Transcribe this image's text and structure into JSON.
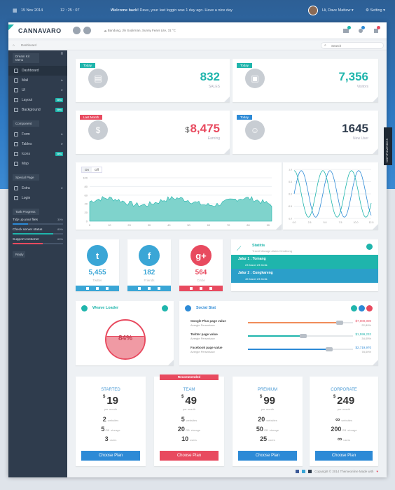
{
  "topbar": {
    "date": "15 Nov 2014",
    "time": "12 : 25 : 07",
    "welcome_strong": "Welcome back!",
    "welcome_rest": " Dave, your last loggin was 1 day ago. Have a nice day",
    "user": "Hi, Dave Mattew",
    "setting": "Setting"
  },
  "header": {
    "brand": "CANNAVARO",
    "location": "Bandung, Jln Sudirman, Sunny Fears Lite, 31 °C"
  },
  "breadcrumb": "Dashboard",
  "search_placeholder": "Search",
  "sidebar": {
    "sec1": "Dream Kit Menu",
    "items1": [
      {
        "label": "Dashboard",
        "arrow": "",
        "tag": ""
      },
      {
        "label": "Mail",
        "arrow": "▸",
        "tag": ""
      },
      {
        "label": "UI",
        "arrow": "▸",
        "tag": ""
      },
      {
        "label": "Layout",
        "arrow": "",
        "tag": "New"
      },
      {
        "label": "Background",
        "arrow": "",
        "tag": "New"
      }
    ],
    "sec2": "Component",
    "items2": [
      {
        "label": "Form",
        "arrow": "▸",
        "tag": ""
      },
      {
        "label": "Tables",
        "arrow": "▸",
        "tag": ""
      },
      {
        "label": "Icons",
        "arrow": "",
        "tag": "New"
      },
      {
        "label": "Map",
        "arrow": "",
        "tag": ""
      }
    ],
    "sec3": "Special Page",
    "items3": [
      {
        "label": "Extra",
        "arrow": "▸",
        "tag": ""
      },
      {
        "label": "Login",
        "arrow": "",
        "tag": ""
      }
    ],
    "sec4": "Task Progress",
    "tasks": [
      {
        "label": "Tidy up your files",
        "pct": "30%",
        "color": "#2d8ad6"
      },
      {
        "label": "Check server status",
        "pct": "80%",
        "color": "#1fb5ac"
      },
      {
        "label": "Support costumer",
        "pct": "60%",
        "color": "#e84a5f"
      }
    ],
    "reply": "Reply"
  },
  "stats": [
    {
      "ribbon": "Today",
      "ribbon_color": "#1fb5ac",
      "value": "832",
      "prefix": "",
      "label": "SALES",
      "color": "#1fb5ac",
      "icon": "store-icon"
    },
    {
      "ribbon": "Today",
      "ribbon_color": "#1fb5ac",
      "value": "7,356",
      "prefix": "",
      "label": "Visitors",
      "color": "#1fb5ac",
      "icon": "bag-icon"
    },
    {
      "ribbon": "Last Month",
      "ribbon_color": "#e84a5f",
      "value": "8,475",
      "prefix": "$",
      "label": "Earning",
      "color": "#e84a5f",
      "icon": "money-icon"
    },
    {
      "ribbon": "Today",
      "ribbon_color": "#2d8ad6",
      "value": "1645",
      "prefix": "",
      "label": "New User",
      "color": "#2f3c4d",
      "icon": "user-icon"
    }
  ],
  "area_chart": {
    "toggle_on": "On",
    "toggle_off": "Off",
    "ylabels": [
      "100",
      "80",
      "60",
      "40",
      "20",
      "0"
    ],
    "xlabels": [
      "0",
      "10",
      "20",
      "30",
      "40",
      "50",
      "60",
      "70",
      "80",
      "90"
    ]
  },
  "wave_chart": {
    "ylabels": [
      "1.0",
      "0.5",
      "0.0",
      "-0.5",
      "-1.0"
    ],
    "xlabels": [
      "0.0",
      "2.5",
      "5.0",
      "7.5",
      "10.0",
      "12.5"
    ]
  },
  "social": [
    {
      "value": "5,455",
      "label": "Twitter",
      "color": "#3aa6d6",
      "icon": "twitter-icon",
      "glyph": "t"
    },
    {
      "value": "182",
      "label": "Friends",
      "color": "#3aa6d6",
      "icon": "facebook-icon",
      "glyph": "f"
    },
    {
      "value": "564",
      "label": "Circle",
      "color": "#e84a5f",
      "icon": "googleplus-icon",
      "glyph": "g+"
    }
  ],
  "statis": {
    "title": "Statitis",
    "sub": "Travel Manage Alaira Cimdbong",
    "rows": [
      {
        "title": "Jalur 1 : Tomang",
        "sub": "23 Maret 23 Detik",
        "color": "#1fb5ac"
      },
      {
        "title": "Jalur 2 : Cungkareng",
        "sub": "45 Maret 23 Detik",
        "color": "#2b9fc9"
      }
    ]
  },
  "weave": {
    "title": "Weave Loader",
    "pct": "84%"
  },
  "social_stat": {
    "title": "Social Stat",
    "rows": [
      {
        "name": "Google Plus page value",
        "sub": "Avergie Persentace",
        "value": "$7,000,000",
        "pct": "22,89%",
        "fill": 0.9,
        "color": "#f08c5a",
        "vcolor": "#e84a5f"
      },
      {
        "name": "Twitter page value",
        "sub": "Avergie Persentace",
        "value": "$1,599,232",
        "pct": "34,05%",
        "fill": 0.55,
        "color": "#1fb5ac",
        "vcolor": "#1fb5ac"
      },
      {
        "name": "Facebook page value",
        "sub": "Avergie Persentace",
        "value": "$2,719,970",
        "pct": "78,00%",
        "fill": 0.8,
        "color": "#2d8ad6",
        "vcolor": "#2d8ad6"
      }
    ]
  },
  "pricing": [
    {
      "title": "STARTED",
      "price": "19",
      "per": "per month",
      "f1": "2",
      "f1l": "websites",
      "f2": "5",
      "f2u": "GB",
      "f2l": "storage",
      "f3": "3",
      "f3l": "users",
      "btn": "Choose Plan",
      "featured": false
    },
    {
      "title": "TEAM",
      "price": "49",
      "per": "per month",
      "f1": "5",
      "f1l": "websites",
      "f2": "20",
      "f2u": "GB",
      "f2l": "storage",
      "f3": "10",
      "f3l": "users",
      "btn": "Choose Plan",
      "featured": true,
      "badge": "Recommended"
    },
    {
      "title": "PREMIUM",
      "price": "99",
      "per": "per month",
      "f1": "20",
      "f1l": "websites",
      "f2": "50",
      "f2u": "GB",
      "f2l": "storage",
      "f3": "25",
      "f3l": "users",
      "btn": "Choose Plan",
      "featured": false
    },
    {
      "title": "CORPORATE",
      "price": "249",
      "per": "per month",
      "f1": "∞",
      "f1l": "websites",
      "f2": "200",
      "f2u": "GB",
      "f2l": "storage",
      "f3": "∞",
      "f3l": "users",
      "btn": "Choose Plan",
      "featured": false
    }
  ],
  "footer": "Copyright © 2014 Themeonline Made with",
  "side_tab": "NOTIFICATIONS",
  "colors": {
    "teal": "#1fb5ac",
    "red": "#e84a5f",
    "blue": "#2d8ad6",
    "dark": "#2f3c4d"
  }
}
